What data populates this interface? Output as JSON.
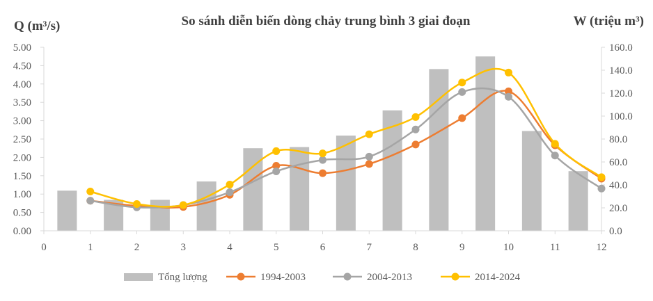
{
  "chart_data": {
    "type": "bar",
    "title": "So sánh diễn biến dòng chảy trung bình 3 giai đoạn",
    "ylabel": "Q (m³/s)",
    "y2label": "W (triệu m³)",
    "xlabel": "",
    "xlim": [
      0,
      12
    ],
    "x_ticks": [
      "0",
      "1",
      "2",
      "3",
      "4",
      "5",
      "6",
      "7",
      "8",
      "9",
      "10",
      "11",
      "12"
    ],
    "ylim": [
      0,
      5
    ],
    "y_ticks": [
      "0.00",
      "0.50",
      "1.00",
      "1.50",
      "2.00",
      "2.50",
      "3.00",
      "3.50",
      "4.00",
      "4.50",
      "5.00"
    ],
    "y2lim": [
      0,
      160
    ],
    "y2_ticks": [
      "0.0",
      "20.0",
      "40.0",
      "60.0",
      "80.0",
      "100.0",
      "120.0",
      "140.0",
      "160.0"
    ],
    "grid": false,
    "legend_position": "bottom",
    "bars": {
      "name": "Tổng lượng",
      "axis": "right",
      "color": "#bfbfbf",
      "x": [
        0.5,
        1.5,
        2.5,
        3.5,
        4.5,
        5.5,
        6.5,
        7.5,
        8.5,
        9.5,
        10.5,
        11.5
      ],
      "values": [
        35,
        27,
        27,
        43,
        72,
        73,
        83,
        105,
        141,
        152,
        87,
        52
      ]
    },
    "series": [
      {
        "name": "1994-2003",
        "color": "#ed7d31",
        "x": [
          1,
          2,
          3,
          4,
          5,
          6,
          7,
          8,
          9,
          10,
          11,
          12
        ],
        "values": [
          0.82,
          0.68,
          0.65,
          0.98,
          1.77,
          1.57,
          1.82,
          2.35,
          3.07,
          3.8,
          2.33,
          1.42
        ]
      },
      {
        "name": "2004-2013",
        "color": "#a5a5a5",
        "x": [
          1,
          2,
          3,
          4,
          5,
          6,
          7,
          8,
          9,
          10,
          11,
          12
        ],
        "values": [
          0.82,
          0.64,
          0.7,
          1.05,
          1.62,
          1.93,
          2.02,
          2.76,
          3.78,
          3.65,
          2.05,
          1.15
        ]
      },
      {
        "name": "2014-2024",
        "color": "#ffc000",
        "x": [
          1,
          2,
          3,
          4,
          5,
          6,
          7,
          8,
          9,
          10,
          11,
          12
        ],
        "values": [
          1.07,
          0.73,
          0.7,
          1.26,
          2.17,
          2.11,
          2.63,
          3.1,
          4.04,
          4.31,
          2.37,
          1.46
        ]
      }
    ]
  }
}
